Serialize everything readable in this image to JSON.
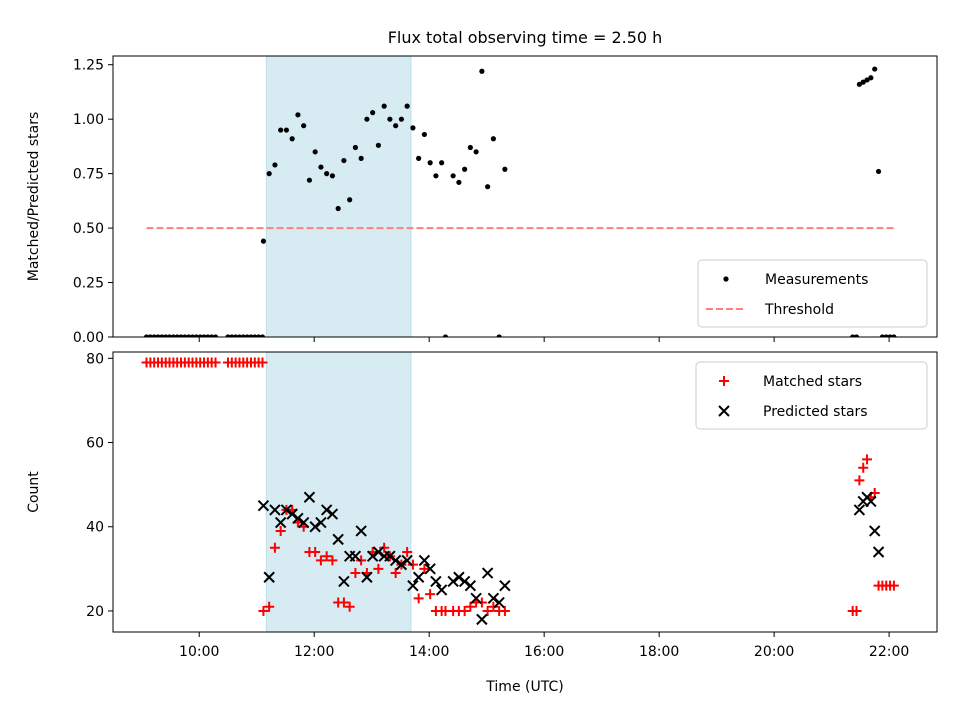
{
  "chart_data": [
    {
      "type": "scatter",
      "title": "Flux total observing time = 2.50 h",
      "xlabel": "",
      "ylabel": "Matched/Predicted stars",
      "xlim": [
        "08:30",
        "22:50"
      ],
      "ylim": [
        0,
        1.29
      ],
      "yticks": [
        "0.00",
        "0.25",
        "0.50",
        "0.75",
        "1.00",
        "1.25"
      ],
      "yticks_values": [
        0,
        0.25,
        0.5,
        0.75,
        1.0,
        1.25
      ],
      "shaded_region": {
        "start": "11:10",
        "end": "13:41",
        "color": "#add8e6"
      },
      "legend_position": "lower right",
      "series": [
        {
          "name": "Measurements",
          "marker": "dot",
          "color": "#000000",
          "points": [
            [
              "09:05",
              0
            ],
            [
              "09:09",
              0
            ],
            [
              "09:13",
              0
            ],
            [
              "09:17",
              0
            ],
            [
              "09:21",
              0
            ],
            [
              "09:25",
              0
            ],
            [
              "09:29",
              0
            ],
            [
              "09:33",
              0
            ],
            [
              "09:37",
              0
            ],
            [
              "09:41",
              0
            ],
            [
              "09:45",
              0
            ],
            [
              "09:49",
              0
            ],
            [
              "09:53",
              0
            ],
            [
              "09:57",
              0
            ],
            [
              "10:01",
              0
            ],
            [
              "10:05",
              0
            ],
            [
              "10:09",
              0
            ],
            [
              "10:13",
              0
            ],
            [
              "10:17",
              0
            ],
            [
              "10:30",
              0
            ],
            [
              "10:34",
              0
            ],
            [
              "10:38",
              0
            ],
            [
              "10:42",
              0
            ],
            [
              "10:46",
              0
            ],
            [
              "10:50",
              0
            ],
            [
              "10:54",
              0
            ],
            [
              "10:58",
              0
            ],
            [
              "11:02",
              0
            ],
            [
              "11:06",
              0
            ],
            [
              "11:07",
              0.44
            ],
            [
              "11:13",
              0.75
            ],
            [
              "11:19",
              0.79
            ],
            [
              "11:25",
              0.95
            ],
            [
              "11:31",
              0.95
            ],
            [
              "11:37",
              0.91
            ],
            [
              "11:43",
              1.02
            ],
            [
              "11:49",
              0.97
            ],
            [
              "11:55",
              0.72
            ],
            [
              "12:01",
              0.85
            ],
            [
              "12:07",
              0.78
            ],
            [
              "12:13",
              0.75
            ],
            [
              "12:19",
              0.74
            ],
            [
              "12:25",
              0.59
            ],
            [
              "12:31",
              0.81
            ],
            [
              "12:37",
              0.63
            ],
            [
              "12:43",
              0.87
            ],
            [
              "12:49",
              0.82
            ],
            [
              "12:55",
              1.0
            ],
            [
              "13:01",
              1.03
            ],
            [
              "13:07",
              0.88
            ],
            [
              "13:13",
              1.06
            ],
            [
              "13:19",
              1.0
            ],
            [
              "13:25",
              0.97
            ],
            [
              "13:31",
              1.0
            ],
            [
              "13:37",
              1.06
            ],
            [
              "13:43",
              0.96
            ],
            [
              "13:49",
              0.82
            ],
            [
              "13:55",
              0.93
            ],
            [
              "14:01",
              0.8
            ],
            [
              "14:07",
              0.74
            ],
            [
              "14:13",
              0.8
            ],
            [
              "14:17",
              0
            ],
            [
              "14:25",
              0.74
            ],
            [
              "14:31",
              0.71
            ],
            [
              "14:37",
              0.77
            ],
            [
              "14:43",
              0.87
            ],
            [
              "14:49",
              0.85
            ],
            [
              "14:55",
              1.22
            ],
            [
              "15:01",
              0.69
            ],
            [
              "15:07",
              0.91
            ],
            [
              "15:13",
              0
            ],
            [
              "15:19",
              0.77
            ],
            [
              "21:22",
              0
            ],
            [
              "21:26",
              0
            ],
            [
              "21:29",
              1.16
            ],
            [
              "21:33",
              1.17
            ],
            [
              "21:37",
              1.18
            ],
            [
              "21:41",
              1.19
            ],
            [
              "21:45",
              1.23
            ],
            [
              "21:49",
              0.76
            ],
            [
              "21:53",
              0
            ],
            [
              "21:57",
              0
            ],
            [
              "22:01",
              0
            ],
            [
              "22:05",
              0
            ]
          ]
        },
        {
          "name": "Threshold",
          "line_style": "dashed",
          "color": "#ff7f7f",
          "points": [
            [
              "09:05",
              0.5
            ],
            [
              "22:05",
              0.5
            ]
          ]
        }
      ]
    },
    {
      "type": "scatter",
      "title": "",
      "xlabel": "Time (UTC)",
      "ylabel": "Count",
      "xlim": [
        "08:30",
        "22:50"
      ],
      "ylim": [
        15,
        81.5
      ],
      "yticks": [
        "20",
        "40",
        "60",
        "80"
      ],
      "yticks_values": [
        20,
        40,
        60,
        80
      ],
      "xticks": [
        "10:00",
        "12:00",
        "14:00",
        "16:00",
        "18:00",
        "20:00",
        "22:00"
      ],
      "shaded_region": {
        "start": "11:10",
        "end": "13:41",
        "color": "#add8e6"
      },
      "legend_position": "upper right",
      "series": [
        {
          "name": "Matched stars",
          "marker": "plus",
          "color": "#ff0000",
          "points": [
            [
              "09:05",
              79
            ],
            [
              "09:09",
              79
            ],
            [
              "09:13",
              79
            ],
            [
              "09:17",
              79
            ],
            [
              "09:21",
              79
            ],
            [
              "09:25",
              79
            ],
            [
              "09:29",
              79
            ],
            [
              "09:33",
              79
            ],
            [
              "09:37",
              79
            ],
            [
              "09:41",
              79
            ],
            [
              "09:45",
              79
            ],
            [
              "09:49",
              79
            ],
            [
              "09:53",
              79
            ],
            [
              "09:57",
              79
            ],
            [
              "10:01",
              79
            ],
            [
              "10:05",
              79
            ],
            [
              "10:09",
              79
            ],
            [
              "10:13",
              79
            ],
            [
              "10:17",
              79
            ],
            [
              "10:30",
              79
            ],
            [
              "10:34",
              79
            ],
            [
              "10:38",
              79
            ],
            [
              "10:42",
              79
            ],
            [
              "10:46",
              79
            ],
            [
              "10:50",
              79
            ],
            [
              "10:54",
              79
            ],
            [
              "10:58",
              79
            ],
            [
              "11:02",
              79
            ],
            [
              "11:06",
              79
            ],
            [
              "11:07",
              20
            ],
            [
              "11:13",
              21
            ],
            [
              "11:19",
              35
            ],
            [
              "11:25",
              39
            ],
            [
              "11:31",
              44
            ],
            [
              "11:37",
              44
            ],
            [
              "11:43",
              41
            ],
            [
              "11:49",
              40
            ],
            [
              "11:55",
              34
            ],
            [
              "12:01",
              34
            ],
            [
              "12:07",
              32
            ],
            [
              "12:13",
              33
            ],
            [
              "12:19",
              32
            ],
            [
              "12:25",
              22
            ],
            [
              "12:31",
              22
            ],
            [
              "12:37",
              21
            ],
            [
              "12:43",
              29
            ],
            [
              "12:49",
              32
            ],
            [
              "12:55",
              29
            ],
            [
              "13:01",
              34
            ],
            [
              "13:07",
              30
            ],
            [
              "13:13",
              35
            ],
            [
              "13:19",
              33
            ],
            [
              "13:25",
              29
            ],
            [
              "13:31",
              31
            ],
            [
              "13:37",
              34
            ],
            [
              "13:43",
              31
            ],
            [
              "13:49",
              23
            ],
            [
              "13:55",
              30
            ],
            [
              "14:01",
              24
            ],
            [
              "14:07",
              20
            ],
            [
              "14:13",
              20
            ],
            [
              "14:17",
              20
            ],
            [
              "14:25",
              20
            ],
            [
              "14:31",
              20
            ],
            [
              "14:37",
              20
            ],
            [
              "14:43",
              21
            ],
            [
              "14:49",
              22
            ],
            [
              "14:55",
              22
            ],
            [
              "15:01",
              20
            ],
            [
              "15:07",
              21
            ],
            [
              "15:13",
              20
            ],
            [
              "15:19",
              20
            ],
            [
              "21:22",
              20
            ],
            [
              "21:26",
              20
            ],
            [
              "21:29",
              51
            ],
            [
              "21:33",
              54
            ],
            [
              "21:37",
              56
            ],
            [
              "21:41",
              47
            ],
            [
              "21:45",
              48
            ],
            [
              "21:49",
              26
            ],
            [
              "21:53",
              26
            ],
            [
              "21:57",
              26
            ],
            [
              "22:01",
              26
            ],
            [
              "22:05",
              26
            ]
          ]
        },
        {
          "name": "Predicted stars",
          "marker": "x",
          "color": "#000000",
          "points": [
            [
              "11:07",
              45
            ],
            [
              "11:13",
              28
            ],
            [
              "11:19",
              44
            ],
            [
              "11:25",
              41
            ],
            [
              "11:31",
              44
            ],
            [
              "11:37",
              43
            ],
            [
              "11:43",
              42
            ],
            [
              "11:49",
              41
            ],
            [
              "11:55",
              47
            ],
            [
              "12:01",
              40
            ],
            [
              "12:07",
              41
            ],
            [
              "12:13",
              44
            ],
            [
              "12:19",
              43
            ],
            [
              "12:25",
              37
            ],
            [
              "12:31",
              27
            ],
            [
              "12:37",
              33
            ],
            [
              "12:43",
              33
            ],
            [
              "12:49",
              39
            ],
            [
              "12:55",
              28
            ],
            [
              "13:01",
              33
            ],
            [
              "13:07",
              34
            ],
            [
              "13:13",
              33
            ],
            [
              "13:19",
              33
            ],
            [
              "13:25",
              32
            ],
            [
              "13:31",
              31
            ],
            [
              "13:37",
              32
            ],
            [
              "13:43",
              26
            ],
            [
              "13:49",
              28
            ],
            [
              "13:55",
              32
            ],
            [
              "14:01",
              30
            ],
            [
              "14:07",
              27
            ],
            [
              "14:13",
              25
            ],
            [
              "14:25",
              27
            ],
            [
              "14:31",
              28
            ],
            [
              "14:37",
              27
            ],
            [
              "14:43",
              26
            ],
            [
              "14:49",
              23
            ],
            [
              "14:55",
              18
            ],
            [
              "15:01",
              29
            ],
            [
              "15:07",
              23
            ],
            [
              "15:13",
              22
            ],
            [
              "15:19",
              26
            ],
            [
              "21:29",
              44
            ],
            [
              "21:33",
              46
            ],
            [
              "21:37",
              47
            ],
            [
              "21:41",
              46
            ],
            [
              "21:45",
              39
            ],
            [
              "21:49",
              34
            ]
          ]
        }
      ]
    }
  ]
}
